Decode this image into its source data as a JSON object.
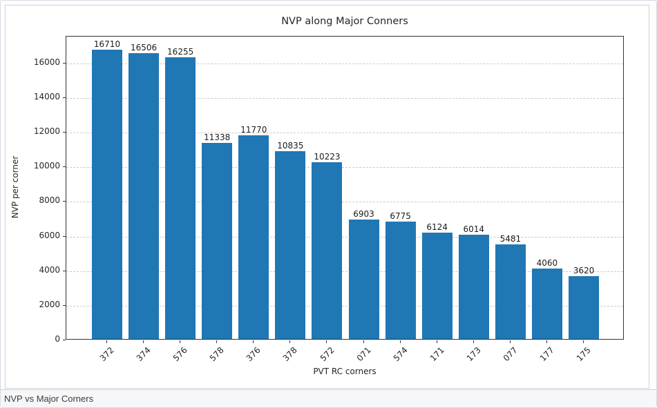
{
  "chart_data": {
    "type": "bar",
    "title": "NVP along Major Conners",
    "categories": [
      "372",
      "374",
      "576",
      "578",
      "376",
      "378",
      "572",
      "071",
      "574",
      "171",
      "173",
      "077",
      "177",
      "175"
    ],
    "values": [
      16710,
      16506,
      16255,
      11338,
      11770,
      10835,
      10223,
      6903,
      6775,
      6124,
      6014,
      5481,
      4060,
      3620
    ],
    "xlabel": "PVT RC corners",
    "ylabel": "NVP per corner",
    "yticks": [
      0,
      2000,
      4000,
      6000,
      8000,
      10000,
      12000,
      14000,
      16000
    ],
    "ylim": [
      0,
      17545
    ],
    "grid": "horizontal-dashed",
    "legend": "none",
    "bar_color": "#1f77b4"
  },
  "status_bar": {
    "text": "NVP vs Major Corners"
  },
  "colors": {
    "bar": "#1f77b4",
    "gridline": "#c9c9c9",
    "spine": "#333333",
    "window_border": "#d7dce5",
    "status_background": "#f6f7f9"
  }
}
